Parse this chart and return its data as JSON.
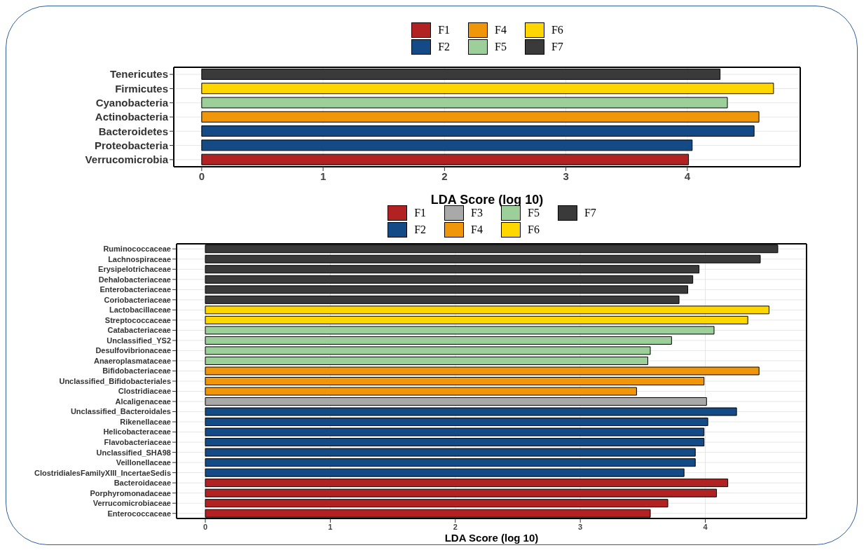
{
  "chart_data": [
    {
      "type": "bar",
      "orientation": "horizontal",
      "stacked": true,
      "xlabel": "LDA Score (log 10)",
      "legend": "top",
      "grid": true,
      "xlim": [
        -0.23,
        4.93
      ],
      "xticks": [
        0,
        1,
        2,
        3,
        4
      ],
      "categories": [
        "Tenericutes",
        "Firmicutes",
        "Cyanobacteria",
        "Actinobacteria",
        "Bacteroidetes",
        "Proteobacteria",
        "Verrucomicrobia"
      ],
      "series": [
        {
          "name": "F1",
          "color": "#b22222",
          "values": [
            null,
            null,
            null,
            null,
            null,
            null,
            4.01
          ]
        },
        {
          "name": "F2",
          "color": "#144a85",
          "values": [
            null,
            null,
            null,
            null,
            4.55,
            4.04,
            null
          ]
        },
        {
          "name": "F4",
          "color": "#f0960a",
          "values": [
            null,
            null,
            null,
            4.59,
            null,
            null,
            null
          ]
        },
        {
          "name": "F5",
          "color": "#9dcf9a",
          "values": [
            null,
            null,
            4.33,
            null,
            null,
            null,
            null
          ]
        },
        {
          "name": "F6",
          "color": "#ffd700",
          "values": [
            null,
            4.71,
            null,
            null,
            null,
            null,
            null
          ]
        },
        {
          "name": "F7",
          "color": "#3a3a3a",
          "values": [
            4.27,
            null,
            null,
            null,
            null,
            null,
            null
          ]
        }
      ]
    },
    {
      "type": "bar",
      "orientation": "horizontal",
      "stacked": true,
      "xlabel": "LDA Score (log 10)",
      "legend": "top",
      "grid": true,
      "xlim": [
        -0.23,
        4.81
      ],
      "xticks": [
        0,
        1,
        2,
        3,
        4
      ],
      "categories": [
        "Ruminococcaceae",
        "Lachnospiraceae",
        "Erysipelotrichaceae",
        "Dehalobacteriaceae",
        "Enterobacteriaceae",
        "Coriobacteriaceae",
        "Lactobacillaceae",
        "Streptococcaceae",
        "Catabacteriaceae",
        "Unclassified_YS2",
        "Desulfovibrionaceae",
        "Anaeroplasmataceae",
        "Bifidobacteriaceae",
        "Unclassified_Bifidobacteriales",
        "Clostridiaceae",
        "Alcaligenaceae",
        "Unclassified_Bacteroidales",
        "Rikenellaceae",
        "Helicobacteraceae",
        "Flavobacteriaceae",
        "Unclassified_SHA98",
        "Veillonellaceae",
        "ClostridialesFamilyXIII_IncertaeSedis",
        "Bacteroidaceae",
        "Porphyromonadaceae",
        "Verrucomicrobiaceae",
        "Enterococcaceae"
      ],
      "series": [
        {
          "name": "F1",
          "color": "#b22222",
          "values": [
            null,
            null,
            null,
            null,
            null,
            null,
            null,
            null,
            null,
            null,
            null,
            null,
            null,
            null,
            null,
            null,
            null,
            null,
            null,
            null,
            null,
            null,
            null,
            4.18,
            4.09,
            3.7,
            3.56
          ]
        },
        {
          "name": "F2",
          "color": "#144a85",
          "values": [
            null,
            null,
            null,
            null,
            null,
            null,
            null,
            null,
            null,
            null,
            null,
            null,
            null,
            null,
            null,
            null,
            4.25,
            4.02,
            3.99,
            3.99,
            3.92,
            3.92,
            3.83,
            null,
            null,
            null,
            null
          ]
        },
        {
          "name": "F3",
          "color": "#a9a9a9",
          "values": [
            null,
            null,
            null,
            null,
            null,
            null,
            null,
            null,
            null,
            null,
            null,
            null,
            null,
            null,
            null,
            4.01,
            null,
            null,
            null,
            null,
            null,
            null,
            null,
            null,
            null,
            null,
            null
          ]
        },
        {
          "name": "F4",
          "color": "#f0960a",
          "values": [
            null,
            null,
            null,
            null,
            null,
            null,
            null,
            null,
            null,
            null,
            null,
            null,
            4.43,
            3.99,
            3.45,
            null,
            null,
            null,
            null,
            null,
            null,
            null,
            null,
            null,
            null,
            null,
            null
          ]
        },
        {
          "name": "F5",
          "color": "#9dcf9a",
          "values": [
            null,
            null,
            null,
            null,
            null,
            null,
            null,
            null,
            4.07,
            3.73,
            3.56,
            3.54,
            null,
            null,
            null,
            null,
            null,
            null,
            null,
            null,
            null,
            null,
            null,
            null,
            null,
            null,
            null
          ]
        },
        {
          "name": "F6",
          "color": "#ffd700",
          "values": [
            null,
            null,
            null,
            null,
            null,
            null,
            4.51,
            4.34,
            null,
            null,
            null,
            null,
            null,
            null,
            null,
            null,
            null,
            null,
            null,
            null,
            null,
            null,
            null,
            null,
            null,
            null,
            null
          ]
        },
        {
          "name": "F7",
          "color": "#3a3a3a",
          "values": [
            4.58,
            4.44,
            3.95,
            3.9,
            3.86,
            3.79,
            null,
            null,
            null,
            null,
            null,
            null,
            null,
            null,
            null,
            null,
            null,
            null,
            null,
            null,
            null,
            null,
            null,
            null,
            null,
            null,
            null
          ]
        }
      ]
    }
  ]
}
